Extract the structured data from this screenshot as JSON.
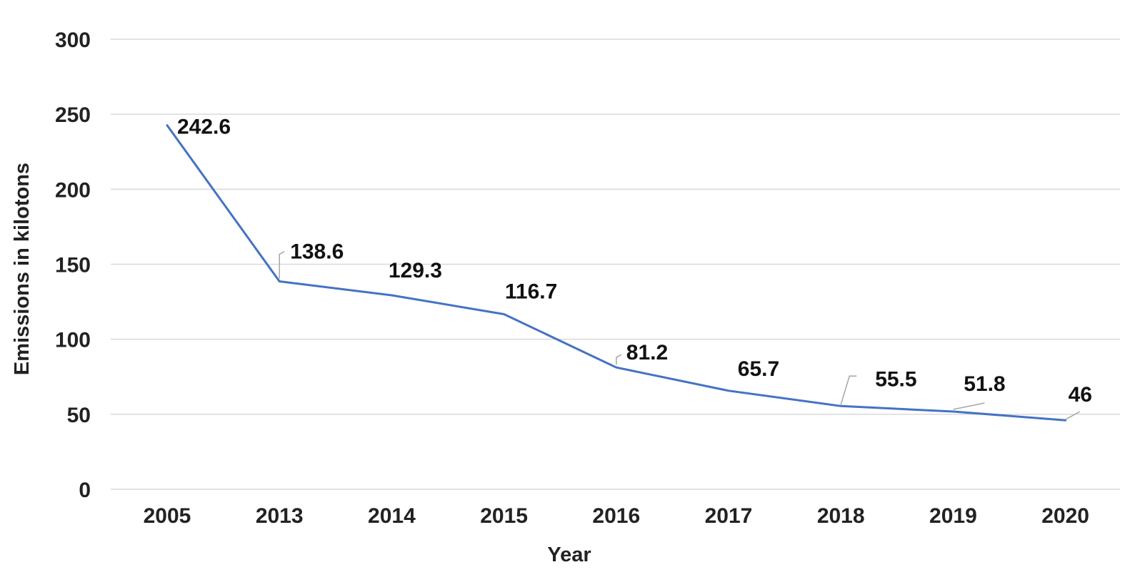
{
  "chart_data": {
    "type": "line",
    "categories": [
      "2005",
      "2013",
      "2014",
      "2015",
      "2016",
      "2017",
      "2018",
      "2019",
      "2020"
    ],
    "series": [
      {
        "values": [
          242.6,
          138.6,
          129.3,
          116.7,
          81.2,
          65.7,
          55.5,
          51.8,
          46
        ],
        "data_labels": [
          "242.6",
          "138.6",
          "129.3",
          "116.7",
          "81.2",
          "65.7",
          "55.5",
          "51.8",
          "46"
        ],
        "color": "#4472c4"
      }
    ],
    "xlabel": "Year",
    "ylabel": "Emissions in kilotons",
    "ylim": [
      0,
      300
    ],
    "yticks": [
      0,
      50,
      100,
      150,
      200,
      250,
      300
    ],
    "ytick_labels": [
      "0",
      "50",
      "100",
      "150",
      "200",
      "250",
      "300"
    ],
    "grid": "horizontal",
    "legend": "none"
  }
}
